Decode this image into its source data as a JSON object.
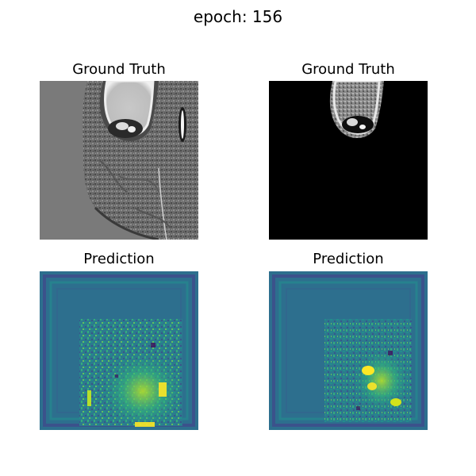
{
  "figure": {
    "suptitle": "epoch: 156"
  },
  "panels": [
    {
      "title": "Ground Truth",
      "content": "grayscale brain MRI slice with bright-rimmed cavity"
    },
    {
      "title": "Ground Truth",
      "content": "grayscale target mask on black background"
    },
    {
      "title": "Prediction",
      "content": "viridis heatmap"
    },
    {
      "title": "Prediction",
      "content": "viridis heatmap"
    }
  ],
  "colors": {
    "background": "#ffffff",
    "mri_gray": "#7a7a7a",
    "mask_background": "#000000",
    "viridis_dark": "#440154",
    "viridis_mid": "#2c7c8e",
    "viridis_bright": "#fde725"
  }
}
